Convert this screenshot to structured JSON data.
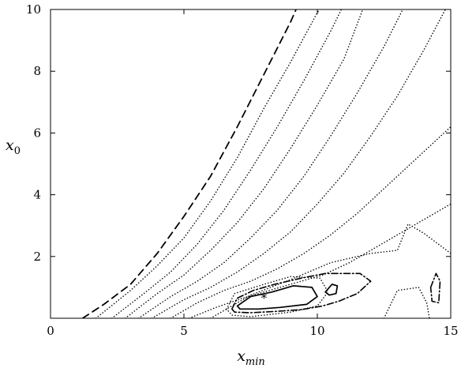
{
  "chart_data": {
    "type": "contour",
    "xlabel": {
      "base": "x",
      "sub": "min"
    },
    "ylabel": {
      "base": "x",
      "sub": "0"
    },
    "xlim": [
      0,
      15
    ],
    "ylim": [
      0,
      10
    ],
    "xticks": [
      0,
      5,
      10,
      15
    ],
    "yticks": [
      2,
      4,
      6,
      8,
      10
    ],
    "xtick_labels": [
      "0",
      "5",
      "10",
      "15"
    ],
    "ytick_labels": [
      "2",
      "4",
      "6",
      "8",
      "10"
    ],
    "grid": false,
    "legend": "none",
    "optimum_marker": {
      "symbol": "*",
      "x": 8.0,
      "y": 0.7
    },
    "contours": [
      {
        "style": "dashed",
        "points": [
          [
            1.2,
            0
          ],
          [
            2,
            0.45
          ],
          [
            3,
            1.1
          ],
          [
            4,
            2.1
          ],
          [
            5,
            3.3
          ],
          [
            6,
            4.6
          ],
          [
            7,
            6.2
          ],
          [
            8,
            7.9
          ],
          [
            9,
            9.6
          ],
          [
            9.2,
            10
          ]
        ]
      },
      {
        "style": "dotted",
        "points": [
          [
            1.7,
            0
          ],
          [
            3,
            0.9
          ],
          [
            4,
            1.7
          ],
          [
            5,
            2.6
          ],
          [
            6,
            3.8
          ],
          [
            7,
            5.2
          ],
          [
            8,
            6.8
          ],
          [
            9,
            8.3
          ],
          [
            10,
            9.9
          ],
          [
            10.1,
            10
          ]
        ]
      },
      {
        "style": "dotted",
        "points": [
          [
            2.3,
            0
          ],
          [
            3.5,
            0.8
          ],
          [
            4.5,
            1.5
          ],
          [
            5.5,
            2.4
          ],
          [
            6.5,
            3.5
          ],
          [
            7.5,
            4.8
          ],
          [
            8.5,
            6.2
          ],
          [
            9.5,
            7.7
          ],
          [
            10.5,
            9.3
          ],
          [
            10.9,
            10
          ]
        ]
      },
      {
        "style": "dotted",
        "points": [
          [
            2.8,
            0
          ],
          [
            4,
            0.8
          ],
          [
            5,
            1.4
          ],
          [
            6,
            2.2
          ],
          [
            7,
            3.1
          ],
          [
            8,
            4.2
          ],
          [
            9,
            5.5
          ],
          [
            10,
            6.9
          ],
          [
            11,
            8.4
          ],
          [
            11.7,
            10
          ]
        ]
      },
      {
        "style": "dotted",
        "points": [
          [
            3.3,
            0
          ],
          [
            4.5,
            0.7
          ],
          [
            5.5,
            1.2
          ],
          [
            6.5,
            1.8
          ],
          [
            7.5,
            2.6
          ],
          [
            8.5,
            3.5
          ],
          [
            9.5,
            4.6
          ],
          [
            10.5,
            5.9
          ],
          [
            11.5,
            7.3
          ],
          [
            12.5,
            8.8
          ],
          [
            13.2,
            10
          ]
        ]
      },
      {
        "style": "dotted",
        "points": [
          [
            3.8,
            0
          ],
          [
            5,
            0.6
          ],
          [
            6,
            1.0
          ],
          [
            7,
            1.5
          ],
          [
            8,
            2.1
          ],
          [
            9,
            2.8
          ],
          [
            10,
            3.7
          ],
          [
            11,
            4.7
          ],
          [
            12,
            5.9
          ],
          [
            13,
            7.2
          ],
          [
            14,
            8.7
          ],
          [
            14.8,
            10
          ]
        ]
      },
      {
        "style": "dotted",
        "points": [
          [
            4.5,
            0
          ],
          [
            5.5,
            0.5
          ],
          [
            6.5,
            0.9
          ],
          [
            7.5,
            1.2
          ],
          [
            8.5,
            1.6
          ],
          [
            9.5,
            2.1
          ],
          [
            10.5,
            2.7
          ],
          [
            11.5,
            3.4
          ],
          [
            12.5,
            4.2
          ],
          [
            13.5,
            5.0
          ],
          [
            14.5,
            5.8
          ],
          [
            15,
            6.2
          ]
        ]
      },
      {
        "style": "dotted",
        "points": [
          [
            5.2,
            0
          ],
          [
            6.2,
            0.35
          ],
          [
            7.2,
            0.65
          ],
          [
            8.2,
            0.9
          ],
          [
            9.2,
            1.15
          ],
          [
            10.2,
            1.4
          ],
          [
            11.2,
            1.8
          ],
          [
            12.2,
            2.3
          ],
          [
            13.2,
            2.8
          ],
          [
            14.2,
            3.3
          ],
          [
            15,
            3.7
          ]
        ]
      },
      {
        "style": "dotted",
        "points": [
          [
            6.0,
            0
          ],
          [
            7.5,
            0.75
          ],
          [
            9,
            1.25
          ],
          [
            10.5,
            1.8
          ],
          [
            12,
            2.1
          ],
          [
            13,
            2.2
          ],
          [
            13.4,
            3.05
          ],
          [
            14,
            2.75
          ],
          [
            15,
            2.1
          ]
        ]
      },
      {
        "style": "dotted",
        "closed": true,
        "points": [
          [
            6.6,
            0.3
          ],
          [
            6.9,
            0.8
          ],
          [
            8.0,
            1.1
          ],
          [
            9.0,
            1.35
          ],
          [
            10.1,
            1.3
          ],
          [
            10.4,
            0.85
          ],
          [
            10.0,
            0.4
          ],
          [
            9.0,
            0.2
          ],
          [
            7.5,
            0.05
          ],
          [
            6.8,
            0.1
          ]
        ]
      },
      {
        "style": "dotted",
        "points": [
          [
            12.5,
            0
          ],
          [
            13.0,
            0.9
          ],
          [
            13.8,
            1.0
          ],
          [
            14.1,
            0.5
          ],
          [
            14.2,
            0
          ]
        ]
      },
      {
        "style": "dashdot",
        "closed": true,
        "points": [
          [
            6.8,
            0.3
          ],
          [
            7.0,
            0.65
          ],
          [
            7.6,
            0.9
          ],
          [
            8.4,
            1.1
          ],
          [
            9.4,
            1.3
          ],
          [
            10.3,
            1.45
          ],
          [
            11.0,
            1.45
          ],
          [
            11.6,
            1.45
          ],
          [
            12.0,
            1.2
          ],
          [
            11.5,
            0.8
          ],
          [
            10.8,
            0.55
          ],
          [
            10.2,
            0.4
          ],
          [
            9.4,
            0.28
          ],
          [
            8.4,
            0.22
          ],
          [
            7.5,
            0.18
          ],
          [
            6.9,
            0.2
          ]
        ]
      },
      {
        "style": "dashdot",
        "closed": true,
        "points": [
          [
            14.25,
            1.0
          ],
          [
            14.45,
            1.45
          ],
          [
            14.6,
            1.2
          ],
          [
            14.55,
            0.5
          ],
          [
            14.3,
            0.55
          ]
        ]
      },
      {
        "style": "solid",
        "closed": true,
        "points": [
          [
            7.0,
            0.4
          ],
          [
            7.5,
            0.7
          ],
          [
            8.3,
            0.85
          ],
          [
            9.1,
            1.05
          ],
          [
            9.8,
            1.0
          ],
          [
            10.0,
            0.7
          ],
          [
            9.6,
            0.45
          ],
          [
            8.6,
            0.35
          ],
          [
            7.8,
            0.3
          ],
          [
            7.1,
            0.3
          ]
        ]
      },
      {
        "style": "solid",
        "closed": true,
        "points": [
          [
            10.3,
            0.85
          ],
          [
            10.55,
            1.1
          ],
          [
            10.75,
            1.05
          ],
          [
            10.7,
            0.8
          ],
          [
            10.45,
            0.75
          ]
        ]
      }
    ]
  }
}
